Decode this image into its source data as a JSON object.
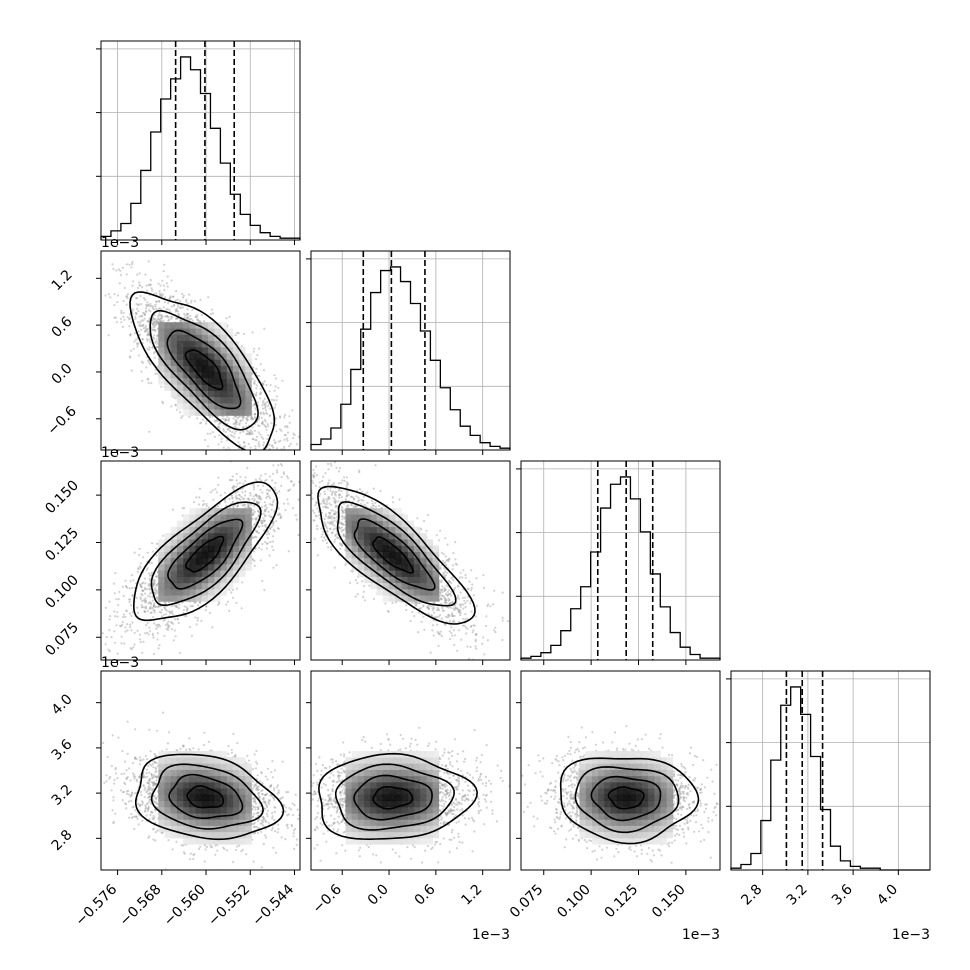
{
  "chart_data": {
    "type": "corner",
    "title": "",
    "params": [
      {
        "name": "",
        "range": [
          -0.579,
          -0.543
        ],
        "ticks": [
          "−0.576",
          "−0.568",
          "−0.560",
          "−0.552",
          "−0.544"
        ],
        "tick_values": [
          -0.576,
          -0.568,
          -0.56,
          -0.552,
          -0.544
        ],
        "offset_label": "",
        "quantiles": [
          -0.5655,
          -0.5602,
          -0.5549
        ],
        "mean": -0.5602,
        "sd": 0.0052
      },
      {
        "name": "",
        "range": [
          -1.0,
          1.55
        ],
        "ticks": [
          "−0.6",
          "0.0",
          "0.6",
          "1.2"
        ],
        "tick_values": [
          -0.6,
          0.0,
          0.6,
          1.2
        ],
        "offset_label": "1e−3",
        "quantiles": [
          -0.33,
          0.03,
          0.46
        ],
        "mean": 0.04,
        "sd": 0.4
      },
      {
        "name": "",
        "range": [
          0.063,
          0.168
        ],
        "ticks": [
          "0.075",
          "0.100",
          "0.125",
          "0.150"
        ],
        "tick_values": [
          0.075,
          0.1,
          0.125,
          0.15
        ],
        "offset_label": "1e−3",
        "quantiles": [
          0.1035,
          0.1185,
          0.1325
        ],
        "mean": 0.1185,
        "sd": 0.0145
      },
      {
        "name": "",
        "range": [
          2.52,
          4.28
        ],
        "ticks": [
          "2.8",
          "3.2",
          "3.6",
          "4.0"
        ],
        "tick_values": [
          2.8,
          3.2,
          3.6,
          4.0
        ],
        "offset_label": "1e−3",
        "quantiles": [
          3.01,
          3.15,
          3.33
        ],
        "mean": 3.16,
        "sd": 0.15
      }
    ],
    "marginals": [
      {
        "param": 0,
        "bins": 20,
        "counts": [
          2,
          5,
          9,
          20,
          38,
          59,
          77,
          88,
          100,
          93,
          80,
          61,
          42,
          25,
          14,
          8,
          4,
          2,
          1,
          1
        ]
      },
      {
        "param": 1,
        "bins": 20,
        "counts": [
          3,
          6,
          12,
          25,
          44,
          66,
          86,
          98,
          100,
          92,
          80,
          65,
          49,
          34,
          22,
          13,
          8,
          4,
          2,
          1
        ]
      },
      {
        "param": 2,
        "bins": 20,
        "counts": [
          1,
          2,
          4,
          8,
          16,
          28,
          40,
          59,
          83,
          96,
          100,
          88,
          70,
          47,
          29,
          15,
          7,
          3,
          1,
          1
        ]
      },
      {
        "param": 3,
        "bins": 20,
        "counts": [
          1,
          3,
          9,
          27,
          60,
          90,
          100,
          85,
          62,
          33,
          13,
          5,
          2,
          1,
          1,
          0,
          0,
          0,
          0,
          0
        ]
      }
    ],
    "pairs": [
      {
        "x": 1,
        "y": 0,
        "correlation": -0.75
      },
      {
        "x": 2,
        "y": 0,
        "correlation": 0.75
      },
      {
        "x": 2,
        "y": 1,
        "correlation": -0.8
      },
      {
        "x": 3,
        "y": 0,
        "correlation": -0.22
      },
      {
        "x": 3,
        "y": 1,
        "correlation": 0.05
      },
      {
        "x": 3,
        "y": 2,
        "correlation": -0.05
      }
    ],
    "contour_levels": [
      0.5,
      1.0,
      1.5,
      2.0
    ],
    "grid": true,
    "legend": "none"
  }
}
